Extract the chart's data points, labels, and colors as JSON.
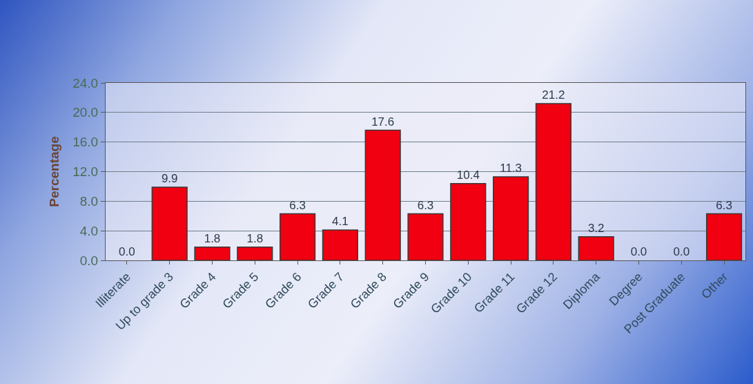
{
  "chart_data": {
    "type": "bar",
    "ylabel": "Percentage",
    "categories": [
      "Illiterate",
      "Up to grade 3",
      "Grade 4",
      "Grade 5",
      "Grade 6",
      "Grade 7",
      "Grade 8",
      "Grade 9",
      "Grade 10",
      "Grade 11",
      "Grade 12",
      "Diploma",
      "Degree",
      "Post Graduate",
      "Other"
    ],
    "values": [
      0.0,
      9.9,
      1.8,
      1.8,
      6.3,
      4.1,
      17.6,
      6.3,
      10.4,
      11.3,
      21.2,
      3.2,
      0.0,
      0.0,
      6.3
    ],
    "value_labels": [
      "0.0",
      "9.9",
      "1.8",
      "1.8",
      "6.3",
      "4.1",
      "17.6",
      "6.3",
      "10.4",
      "11.3",
      "21.2",
      "3.2",
      "0.0",
      "0.0",
      "6.3"
    ],
    "color": "#f00010",
    "ylim": [
      0,
      24
    ],
    "yticks": [
      {
        "value": 0,
        "label": "0.0"
      },
      {
        "value": 4,
        "label": "4.0"
      },
      {
        "value": 8,
        "label": "8.0"
      },
      {
        "value": 12,
        "label": "12.0"
      },
      {
        "value": 16,
        "label": "16.0"
      },
      {
        "value": 20,
        "label": "20.0"
      },
      {
        "value": 24,
        "label": "24.0"
      }
    ],
    "grid": "y"
  }
}
